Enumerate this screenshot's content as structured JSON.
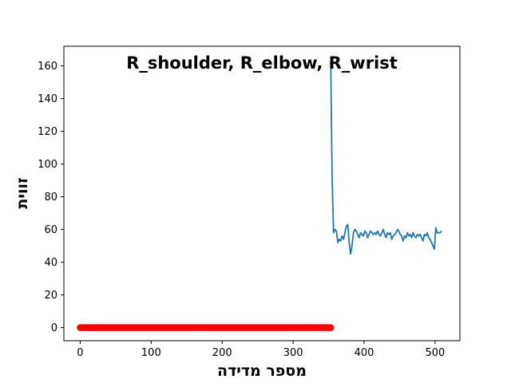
{
  "chart_data": {
    "type": "line",
    "title": "R_shoulder, R_elbow, R_wrist",
    "xlabel": "מספר מדידה",
    "ylabel": "זווית",
    "xlim": [
      -23,
      535
    ],
    "ylim": [
      -8,
      172
    ],
    "xticks": [
      0,
      100,
      200,
      300,
      400,
      500
    ],
    "yticks": [
      0,
      20,
      40,
      60,
      80,
      100,
      120,
      140,
      160
    ],
    "grid": false,
    "series": [
      {
        "kind": "line",
        "color": "#1f77b4",
        "x": [
          353,
          355,
          357,
          359,
          361,
          363,
          365,
          367,
          369,
          371,
          373,
          375,
          377,
          379,
          381,
          383,
          385,
          387,
          389,
          391,
          393,
          395,
          397,
          399,
          401,
          403,
          405,
          407,
          409,
          411,
          413,
          415,
          417,
          419,
          421,
          423,
          425,
          427,
          429,
          431,
          433,
          435,
          437,
          439,
          441,
          443,
          445,
          447,
          449,
          451,
          453,
          455,
          457,
          459,
          461,
          463,
          465,
          467,
          469,
          471,
          473,
          475,
          477,
          479,
          481,
          483,
          485,
          487,
          489,
          491,
          493,
          495,
          497,
          499,
          501,
          503,
          505,
          507,
          509
        ],
        "y": [
          163,
          90,
          58,
          60,
          59,
          52,
          54,
          53,
          56,
          54,
          58,
          62,
          63,
          52,
          45,
          50,
          58,
          60,
          59,
          57,
          55,
          58,
          57,
          56,
          59,
          58,
          55,
          57,
          59,
          58,
          57,
          58,
          57,
          59,
          57,
          56,
          58,
          60,
          57,
          55,
          58,
          57,
          58,
          54,
          56,
          57,
          58,
          60,
          59,
          57,
          56,
          53,
          56,
          55,
          58,
          56,
          57,
          55,
          58,
          56,
          55,
          57,
          56,
          57,
          55,
          53,
          57,
          56,
          58,
          55,
          54,
          52,
          50,
          48,
          61,
          58,
          58,
          58,
          59
        ]
      },
      {
        "kind": "scatter",
        "color": "#ff0000",
        "x_start": 0,
        "x_end": 353,
        "x_step": 1,
        "y": 0
      }
    ]
  }
}
